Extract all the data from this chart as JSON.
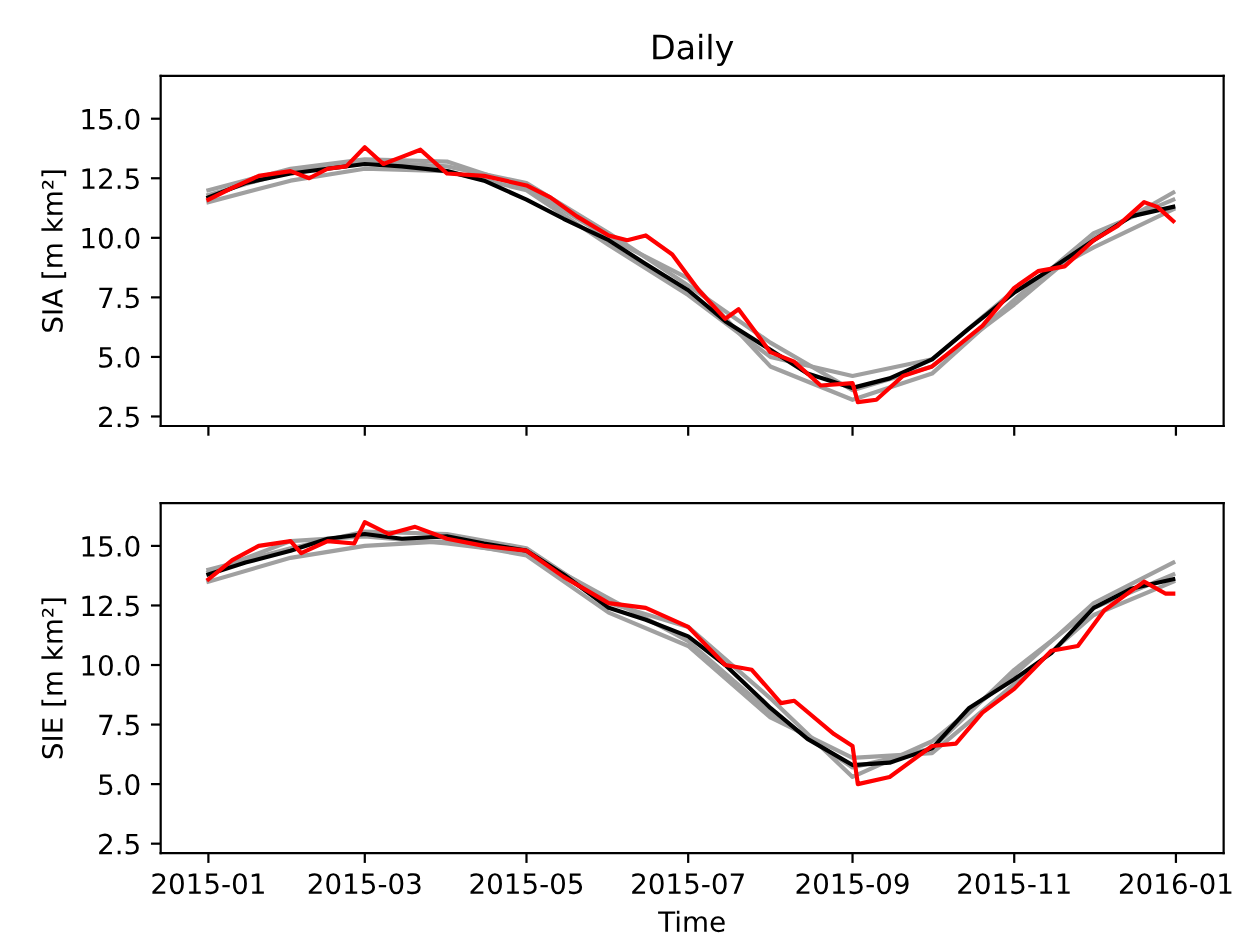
{
  "chart_data": [
    {
      "type": "line",
      "title": "Daily",
      "ylabel": "SIA [m km²]",
      "xlim": [
        "2014-12-14",
        "2016-01-19"
      ],
      "xticks": [
        {
          "value": "2015-01-01",
          "label": null
        },
        {
          "value": "2015-03-01",
          "label": null
        },
        {
          "value": "2015-05-01",
          "label": null
        },
        {
          "value": "2015-07-01",
          "label": null
        },
        {
          "value": "2015-09-01",
          "label": null
        },
        {
          "value": "2015-11-01",
          "label": null
        },
        {
          "value": "2016-01-01",
          "label": null
        }
      ],
      "ylim": [
        2.1,
        16.8
      ],
      "yticks": [
        {
          "value": 2.5,
          "label": "2.5"
        },
        {
          "value": 5,
          "label": "5.0"
        },
        {
          "value": 7.5,
          "label": "7.5"
        },
        {
          "value": 10,
          "label": "10.0"
        },
        {
          "value": 12.5,
          "label": "12.5"
        },
        {
          "value": 15,
          "label": "15.0"
        }
      ],
      "tick_labels": "y",
      "grid": false,
      "legend": false,
      "series": [
        {
          "color": "#a0a0a0",
          "x": [
            "2015-01-01",
            "2015-02-01",
            "2015-03-01",
            "2015-04-01",
            "2015-05-01",
            "2015-06-01",
            "2015-07-01",
            "2015-08-01",
            "2015-09-01",
            "2015-10-01",
            "2015-11-01",
            "2015-12-01",
            "2015-12-31"
          ],
          "values": [
            11.8,
            12.8,
            13.2,
            13.0,
            12.3,
            10.2,
            8.0,
            5.6,
            3.6,
            4.6,
            7.2,
            10.0,
            11.9
          ]
        },
        {
          "color": "#a0a0a0",
          "x": [
            "2015-01-01",
            "2015-02-01",
            "2015-03-01",
            "2015-04-01",
            "2015-05-01",
            "2015-06-01",
            "2015-07-01",
            "2015-08-01",
            "2015-09-01",
            "2015-10-01",
            "2015-11-01",
            "2015-12-01",
            "2015-12-31"
          ],
          "values": [
            11.5,
            12.4,
            12.9,
            12.8,
            12.0,
            9.7,
            7.6,
            5.0,
            4.2,
            4.9,
            7.8,
            9.6,
            11.2
          ]
        },
        {
          "color": "#a0a0a0",
          "x": [
            "2015-01-01",
            "2015-02-01",
            "2015-03-01",
            "2015-04-01",
            "2015-05-01",
            "2015-06-01",
            "2015-07-01",
            "2015-08-01",
            "2015-09-01",
            "2015-10-01",
            "2015-11-01",
            "2015-12-01",
            "2015-12-31"
          ],
          "values": [
            12.0,
            12.9,
            13.3,
            13.2,
            12.1,
            10.0,
            8.3,
            4.6,
            3.2,
            4.3,
            7.4,
            10.2,
            11.6
          ]
        },
        {
          "color": "#000000",
          "x": [
            "2015-01-01",
            "2015-01-15",
            "2015-02-01",
            "2015-02-15",
            "2015-03-01",
            "2015-03-15",
            "2015-04-01",
            "2015-04-15",
            "2015-05-01",
            "2015-05-15",
            "2015-06-01",
            "2015-06-15",
            "2015-07-01",
            "2015-07-15",
            "2015-08-01",
            "2015-08-15",
            "2015-09-01",
            "2015-09-15",
            "2015-10-01",
            "2015-10-15",
            "2015-11-01",
            "2015-11-15",
            "2015-12-01",
            "2015-12-15",
            "2015-12-31"
          ],
          "values": [
            11.7,
            12.3,
            12.7,
            12.9,
            13.1,
            13.0,
            12.8,
            12.4,
            11.6,
            10.8,
            9.9,
            8.9,
            7.8,
            6.5,
            5.3,
            4.3,
            3.7,
            4.1,
            4.9,
            6.2,
            7.7,
            8.7,
            9.9,
            10.9,
            11.3
          ]
        },
        {
          "color": "#ff0000",
          "x": [
            "2015-01-01",
            "2015-01-10",
            "2015-01-20",
            "2015-02-01",
            "2015-02-08",
            "2015-02-15",
            "2015-02-22",
            "2015-03-01",
            "2015-03-08",
            "2015-03-15",
            "2015-03-22",
            "2015-04-01",
            "2015-04-15",
            "2015-05-01",
            "2015-05-10",
            "2015-05-20",
            "2015-06-01",
            "2015-06-08",
            "2015-06-15",
            "2015-06-25",
            "2015-07-05",
            "2015-07-15",
            "2015-07-20",
            "2015-08-01",
            "2015-08-10",
            "2015-08-20",
            "2015-09-01",
            "2015-09-03",
            "2015-09-10",
            "2015-09-20",
            "2015-10-01",
            "2015-10-10",
            "2015-10-20",
            "2015-11-01",
            "2015-11-10",
            "2015-11-20",
            "2015-12-01",
            "2015-12-10",
            "2015-12-20",
            "2015-12-25",
            "2015-12-31"
          ],
          "values": [
            11.6,
            12.1,
            12.6,
            12.8,
            12.5,
            12.9,
            13.0,
            13.8,
            13.1,
            13.4,
            13.7,
            12.7,
            12.6,
            12.2,
            11.7,
            10.9,
            10.1,
            9.9,
            10.1,
            9.3,
            7.8,
            6.6,
            7.0,
            5.2,
            4.8,
            3.8,
            3.9,
            3.1,
            3.2,
            4.2,
            4.6,
            5.4,
            6.3,
            7.9,
            8.6,
            8.8,
            9.9,
            10.5,
            11.5,
            11.3,
            10.7
          ]
        }
      ]
    },
    {
      "type": "line",
      "ylabel": "SIE [m km²]",
      "xlabel": "Time",
      "xlim": [
        "2014-12-14",
        "2016-01-19"
      ],
      "xticks": [
        {
          "value": "2015-01-01",
          "label": "2015-01"
        },
        {
          "value": "2015-03-01",
          "label": "2015-03"
        },
        {
          "value": "2015-05-01",
          "label": "2015-05"
        },
        {
          "value": "2015-07-01",
          "label": "2015-07"
        },
        {
          "value": "2015-09-01",
          "label": "2015-09"
        },
        {
          "value": "2015-11-01",
          "label": "2015-11"
        },
        {
          "value": "2016-01-01",
          "label": "2016-01"
        }
      ],
      "ylim": [
        2.1,
        16.8
      ],
      "yticks": [
        {
          "value": 2.5,
          "label": "2.5"
        },
        {
          "value": 5,
          "label": "5.0"
        },
        {
          "value": 7.5,
          "label": "7.5"
        },
        {
          "value": 10,
          "label": "10.0"
        },
        {
          "value": 12.5,
          "label": "12.5"
        },
        {
          "value": 15,
          "label": "15.0"
        }
      ],
      "grid": false,
      "legend": false,
      "series": [
        {
          "color": "#a0a0a0",
          "x": [
            "2015-01-01",
            "2015-02-01",
            "2015-03-01",
            "2015-04-01",
            "2015-05-01",
            "2015-06-01",
            "2015-07-01",
            "2015-08-01",
            "2015-09-01",
            "2015-10-01",
            "2015-11-01",
            "2015-12-01",
            "2015-12-31"
          ],
          "values": [
            14.0,
            14.9,
            15.6,
            15.5,
            14.9,
            12.6,
            11.6,
            8.6,
            5.3,
            6.8,
            9.6,
            12.6,
            14.3
          ]
        },
        {
          "color": "#a0a0a0",
          "x": [
            "2015-01-01",
            "2015-02-01",
            "2015-03-01",
            "2015-04-01",
            "2015-05-01",
            "2015-06-01",
            "2015-07-01",
            "2015-08-01",
            "2015-09-01",
            "2015-10-01",
            "2015-11-01",
            "2015-12-01",
            "2015-12-31"
          ],
          "values": [
            13.5,
            14.5,
            15.0,
            15.2,
            14.6,
            12.2,
            10.8,
            7.8,
            6.1,
            6.3,
            9.2,
            12.1,
            13.5
          ]
        },
        {
          "color": "#a0a0a0",
          "x": [
            "2015-01-01",
            "2015-02-01",
            "2015-03-01",
            "2015-04-01",
            "2015-05-01",
            "2015-06-01",
            "2015-07-01",
            "2015-08-01",
            "2015-09-01",
            "2015-10-01",
            "2015-11-01",
            "2015-12-01",
            "2015-12-31"
          ],
          "values": [
            13.9,
            15.2,
            15.4,
            15.1,
            14.7,
            12.8,
            11.0,
            8.0,
            5.7,
            6.5,
            9.8,
            12.4,
            13.8
          ]
        },
        {
          "color": "#000000",
          "x": [
            "2015-01-01",
            "2015-01-15",
            "2015-02-01",
            "2015-02-15",
            "2015-03-01",
            "2015-03-15",
            "2015-04-01",
            "2015-04-15",
            "2015-05-01",
            "2015-05-15",
            "2015-06-01",
            "2015-06-15",
            "2015-07-01",
            "2015-07-15",
            "2015-08-01",
            "2015-08-15",
            "2015-09-01",
            "2015-09-15",
            "2015-10-01",
            "2015-10-15",
            "2015-11-01",
            "2015-11-15",
            "2015-12-01",
            "2015-12-15",
            "2015-12-31"
          ],
          "values": [
            13.8,
            14.3,
            14.8,
            15.3,
            15.5,
            15.3,
            15.4,
            15.1,
            14.8,
            13.8,
            12.4,
            11.9,
            11.2,
            10.0,
            8.2,
            6.9,
            5.8,
            5.9,
            6.5,
            8.2,
            9.4,
            10.5,
            12.4,
            13.2,
            13.6
          ]
        },
        {
          "color": "#ff0000",
          "x": [
            "2015-01-01",
            "2015-01-10",
            "2015-01-20",
            "2015-02-01",
            "2015-02-05",
            "2015-02-15",
            "2015-02-25",
            "2015-03-01",
            "2015-03-10",
            "2015-03-20",
            "2015-04-01",
            "2015-04-15",
            "2015-05-01",
            "2015-05-15",
            "2015-06-01",
            "2015-06-15",
            "2015-07-01",
            "2015-07-15",
            "2015-07-25",
            "2015-08-05",
            "2015-08-10",
            "2015-08-25",
            "2015-09-01",
            "2015-09-03",
            "2015-09-15",
            "2015-10-01",
            "2015-10-10",
            "2015-10-20",
            "2015-11-01",
            "2015-11-15",
            "2015-11-25",
            "2015-12-05",
            "2015-12-15",
            "2015-12-20",
            "2015-12-28",
            "2015-12-31"
          ],
          "values": [
            13.6,
            14.4,
            15.0,
            15.2,
            14.7,
            15.2,
            15.1,
            16.0,
            15.5,
            15.8,
            15.3,
            15.0,
            14.8,
            13.7,
            12.6,
            12.4,
            11.6,
            10.0,
            9.8,
            8.4,
            8.5,
            7.1,
            6.6,
            5.0,
            5.3,
            6.6,
            6.7,
            8.0,
            9.0,
            10.6,
            10.8,
            12.3,
            13.1,
            13.5,
            13.0,
            13.0
          ]
        }
      ]
    }
  ]
}
